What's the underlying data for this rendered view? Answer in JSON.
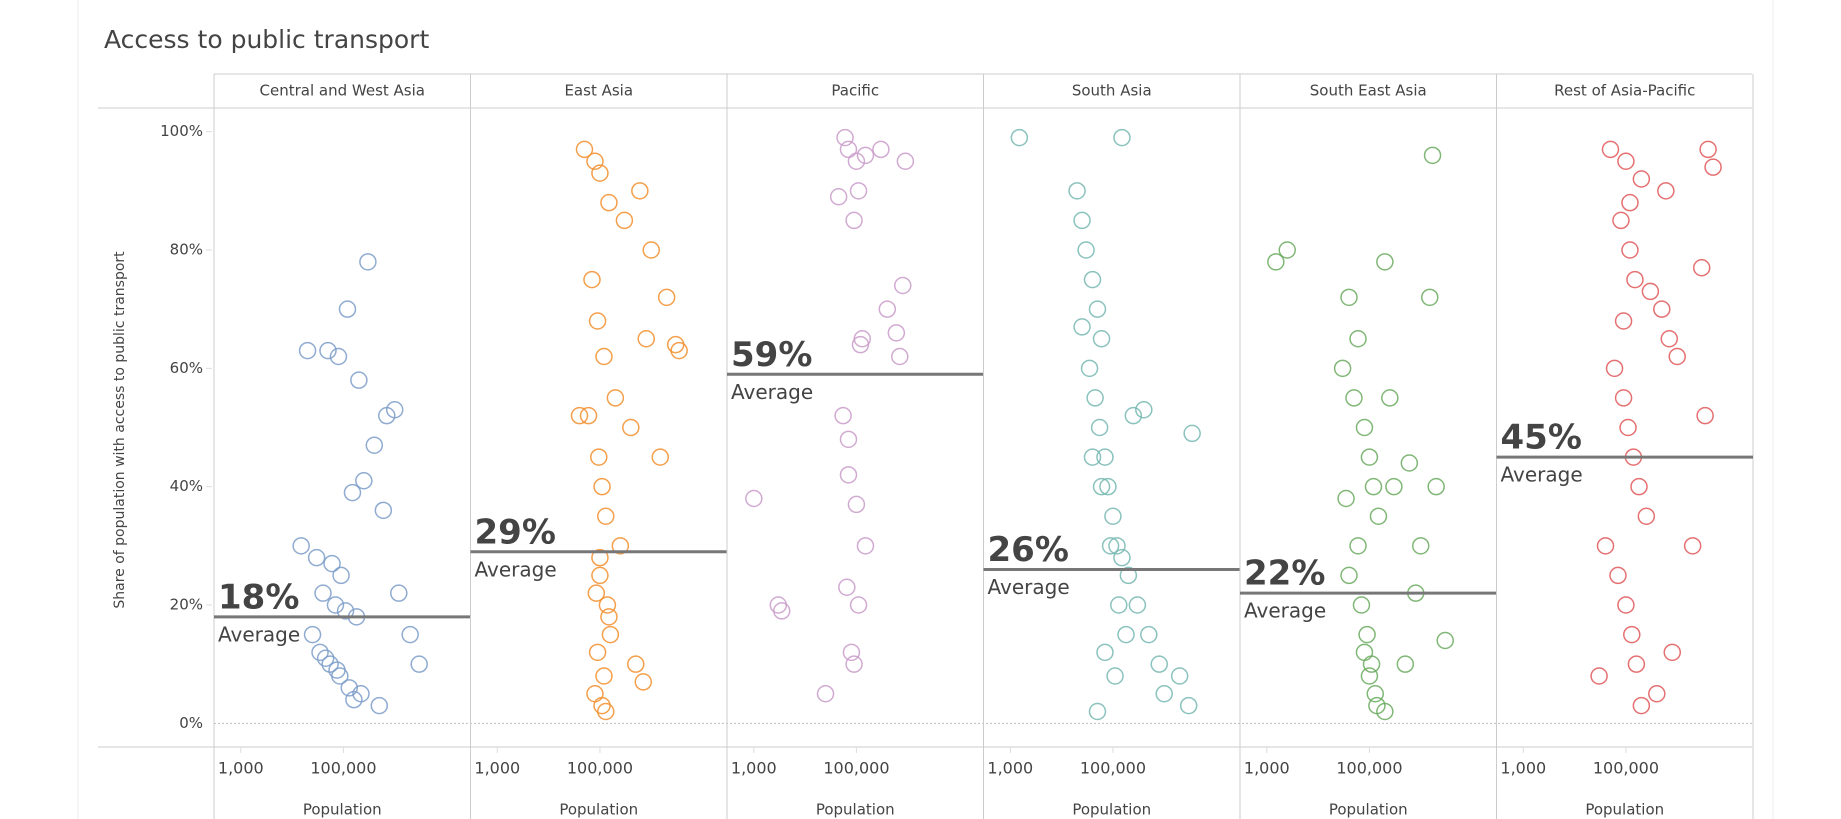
{
  "chart_data": {
    "type": "scatter",
    "title": "Access to public transport",
    "ylabel": "Share of population with access to public transport",
    "xlabel": "Population",
    "average_caption": "Average",
    "log_x": true,
    "xlim": [
      300,
      30000000
    ],
    "xticks": [
      {
        "value": 1000,
        "label": "1,000"
      },
      {
        "value": 100000,
        "label": "100,000"
      }
    ],
    "ylim": [
      -4,
      104
    ],
    "yticks": [
      {
        "value": 0,
        "label": "0%"
      },
      {
        "value": 20,
        "label": "20%"
      },
      {
        "value": 40,
        "label": "40%"
      },
      {
        "value": 60,
        "label": "60%"
      },
      {
        "value": 80,
        "label": "80%"
      },
      {
        "value": 100,
        "label": "100%"
      }
    ],
    "series": [
      {
        "name": "Central and West Asia",
        "color": "#7b9cc9",
        "average": 18,
        "average_label": "18%",
        "x": [
          20000,
          50000,
          80000,
          120000,
          300000,
          200000,
          700000,
          1000000,
          400000,
          600000,
          15000,
          30000,
          60000,
          90000,
          150000,
          250000,
          40000,
          70000,
          110000,
          180000,
          35000,
          55000,
          85000,
          130000,
          220000,
          500000,
          25000,
          45000,
          75000,
          160000,
          1200000,
          2000000,
          3000000
        ],
        "values": [
          63,
          63,
          62,
          70,
          78,
          58,
          52,
          53,
          47,
          36,
          30,
          28,
          27,
          25,
          39,
          41,
          22,
          20,
          19,
          18,
          12,
          10,
          8,
          6,
          5,
          3,
          15,
          11,
          9,
          4,
          22,
          15,
          10
        ]
      },
      {
        "name": "East Asia",
        "color": "#f28e2b",
        "average": 29,
        "average_label": "29%",
        "x": [
          50000,
          80000,
          100000,
          150000,
          300000,
          600000,
          1000000,
          2000000,
          3000000,
          70000,
          90000,
          120000,
          200000,
          400000,
          800000,
          1500000,
          60000,
          110000,
          130000,
          250000,
          100000,
          140000,
          160000,
          90000,
          120000,
          80000,
          110000,
          500000,
          700000,
          130000,
          150000,
          100000,
          85000,
          3500000,
          40000,
          95000
        ],
        "values": [
          97,
          95,
          93,
          88,
          85,
          90,
          80,
          72,
          64,
          75,
          68,
          62,
          55,
          50,
          65,
          45,
          52,
          40,
          35,
          30,
          25,
          20,
          15,
          12,
          8,
          5,
          3,
          10,
          7,
          2,
          18,
          28,
          22,
          63,
          52,
          45
        ]
      },
      {
        "name": "Pacific",
        "color": "#c99bc9",
        "average": 59,
        "average_label": "59%",
        "x": [
          60000,
          70000,
          100000,
          150000,
          300000,
          400000,
          800000,
          700000,
          600000,
          120000,
          90000,
          110000,
          150000,
          55000,
          70000,
          100000,
          1000,
          3000,
          3500,
          110000,
          80000,
          90000,
          25000,
          65000,
          45000,
          70000,
          130000,
          900000
        ],
        "values": [
          99,
          97,
          95,
          96,
          97,
          70,
          74,
          62,
          66,
          64,
          85,
          90,
          30,
          52,
          42,
          37,
          38,
          20,
          19,
          20,
          12,
          10,
          5,
          23,
          89,
          48,
          65,
          95
        ]
      },
      {
        "name": "South Asia",
        "color": "#76b7b2",
        "average": 26,
        "average_label": "26%",
        "x": [
          1500,
          150000,
          20000,
          25000,
          30000,
          40000,
          50000,
          60000,
          35000,
          45000,
          55000,
          70000,
          80000,
          100000,
          120000,
          150000,
          200000,
          300000,
          500000,
          800000,
          1000000,
          2000000,
          3000000,
          40000,
          60000,
          90000,
          130000,
          180000,
          70000,
          110000,
          50000,
          25000,
          3500000,
          250000,
          400000
        ],
        "values": [
          99,
          99,
          90,
          85,
          80,
          75,
          70,
          65,
          60,
          55,
          50,
          45,
          40,
          35,
          30,
          28,
          25,
          20,
          15,
          10,
          5,
          8,
          3,
          45,
          40,
          30,
          20,
          15,
          12,
          8,
          2,
          67,
          49,
          52,
          53
        ]
      },
      {
        "name": "South East Asia",
        "color": "#6aaa5e",
        "average": 22,
        "average_label": "22%",
        "x": [
          1500,
          2500,
          200000,
          1500000,
          1700000,
          40000,
          60000,
          30000,
          50000,
          80000,
          100000,
          120000,
          150000,
          300000,
          600000,
          1000000,
          2000000,
          3000000,
          40000,
          70000,
          90000,
          110000,
          130000,
          60000,
          100000,
          140000,
          200000,
          500000,
          80000,
          250000,
          800000,
          35000
        ],
        "values": [
          78,
          80,
          78,
          72,
          96,
          72,
          65,
          60,
          55,
          50,
          45,
          40,
          35,
          40,
          44,
          30,
          40,
          14,
          25,
          20,
          15,
          10,
          5,
          30,
          8,
          3,
          2,
          10,
          12,
          55,
          22,
          38
        ]
      },
      {
        "name": "Rest of Asia-Pacific",
        "color": "#e15759",
        "average": 45,
        "average_label": "45%",
        "x": [
          50000,
          100000,
          200000,
          600000,
          4000000,
          5000000,
          3000000,
          80000,
          120000,
          150000,
          300000,
          500000,
          700000,
          1000000,
          60000,
          90000,
          110000,
          140000,
          180000,
          250000,
          40000,
          70000,
          100000,
          130000,
          160000,
          400000,
          800000,
          2000000,
          30000,
          200000,
          3500000,
          120000,
          90000
        ],
        "values": [
          97,
          95,
          92,
          90,
          97,
          94,
          77,
          85,
          80,
          75,
          73,
          70,
          65,
          62,
          60,
          55,
          50,
          45,
          40,
          35,
          30,
          25,
          20,
          15,
          10,
          5,
          12,
          30,
          8,
          3,
          52,
          88,
          68
        ]
      }
    ]
  }
}
